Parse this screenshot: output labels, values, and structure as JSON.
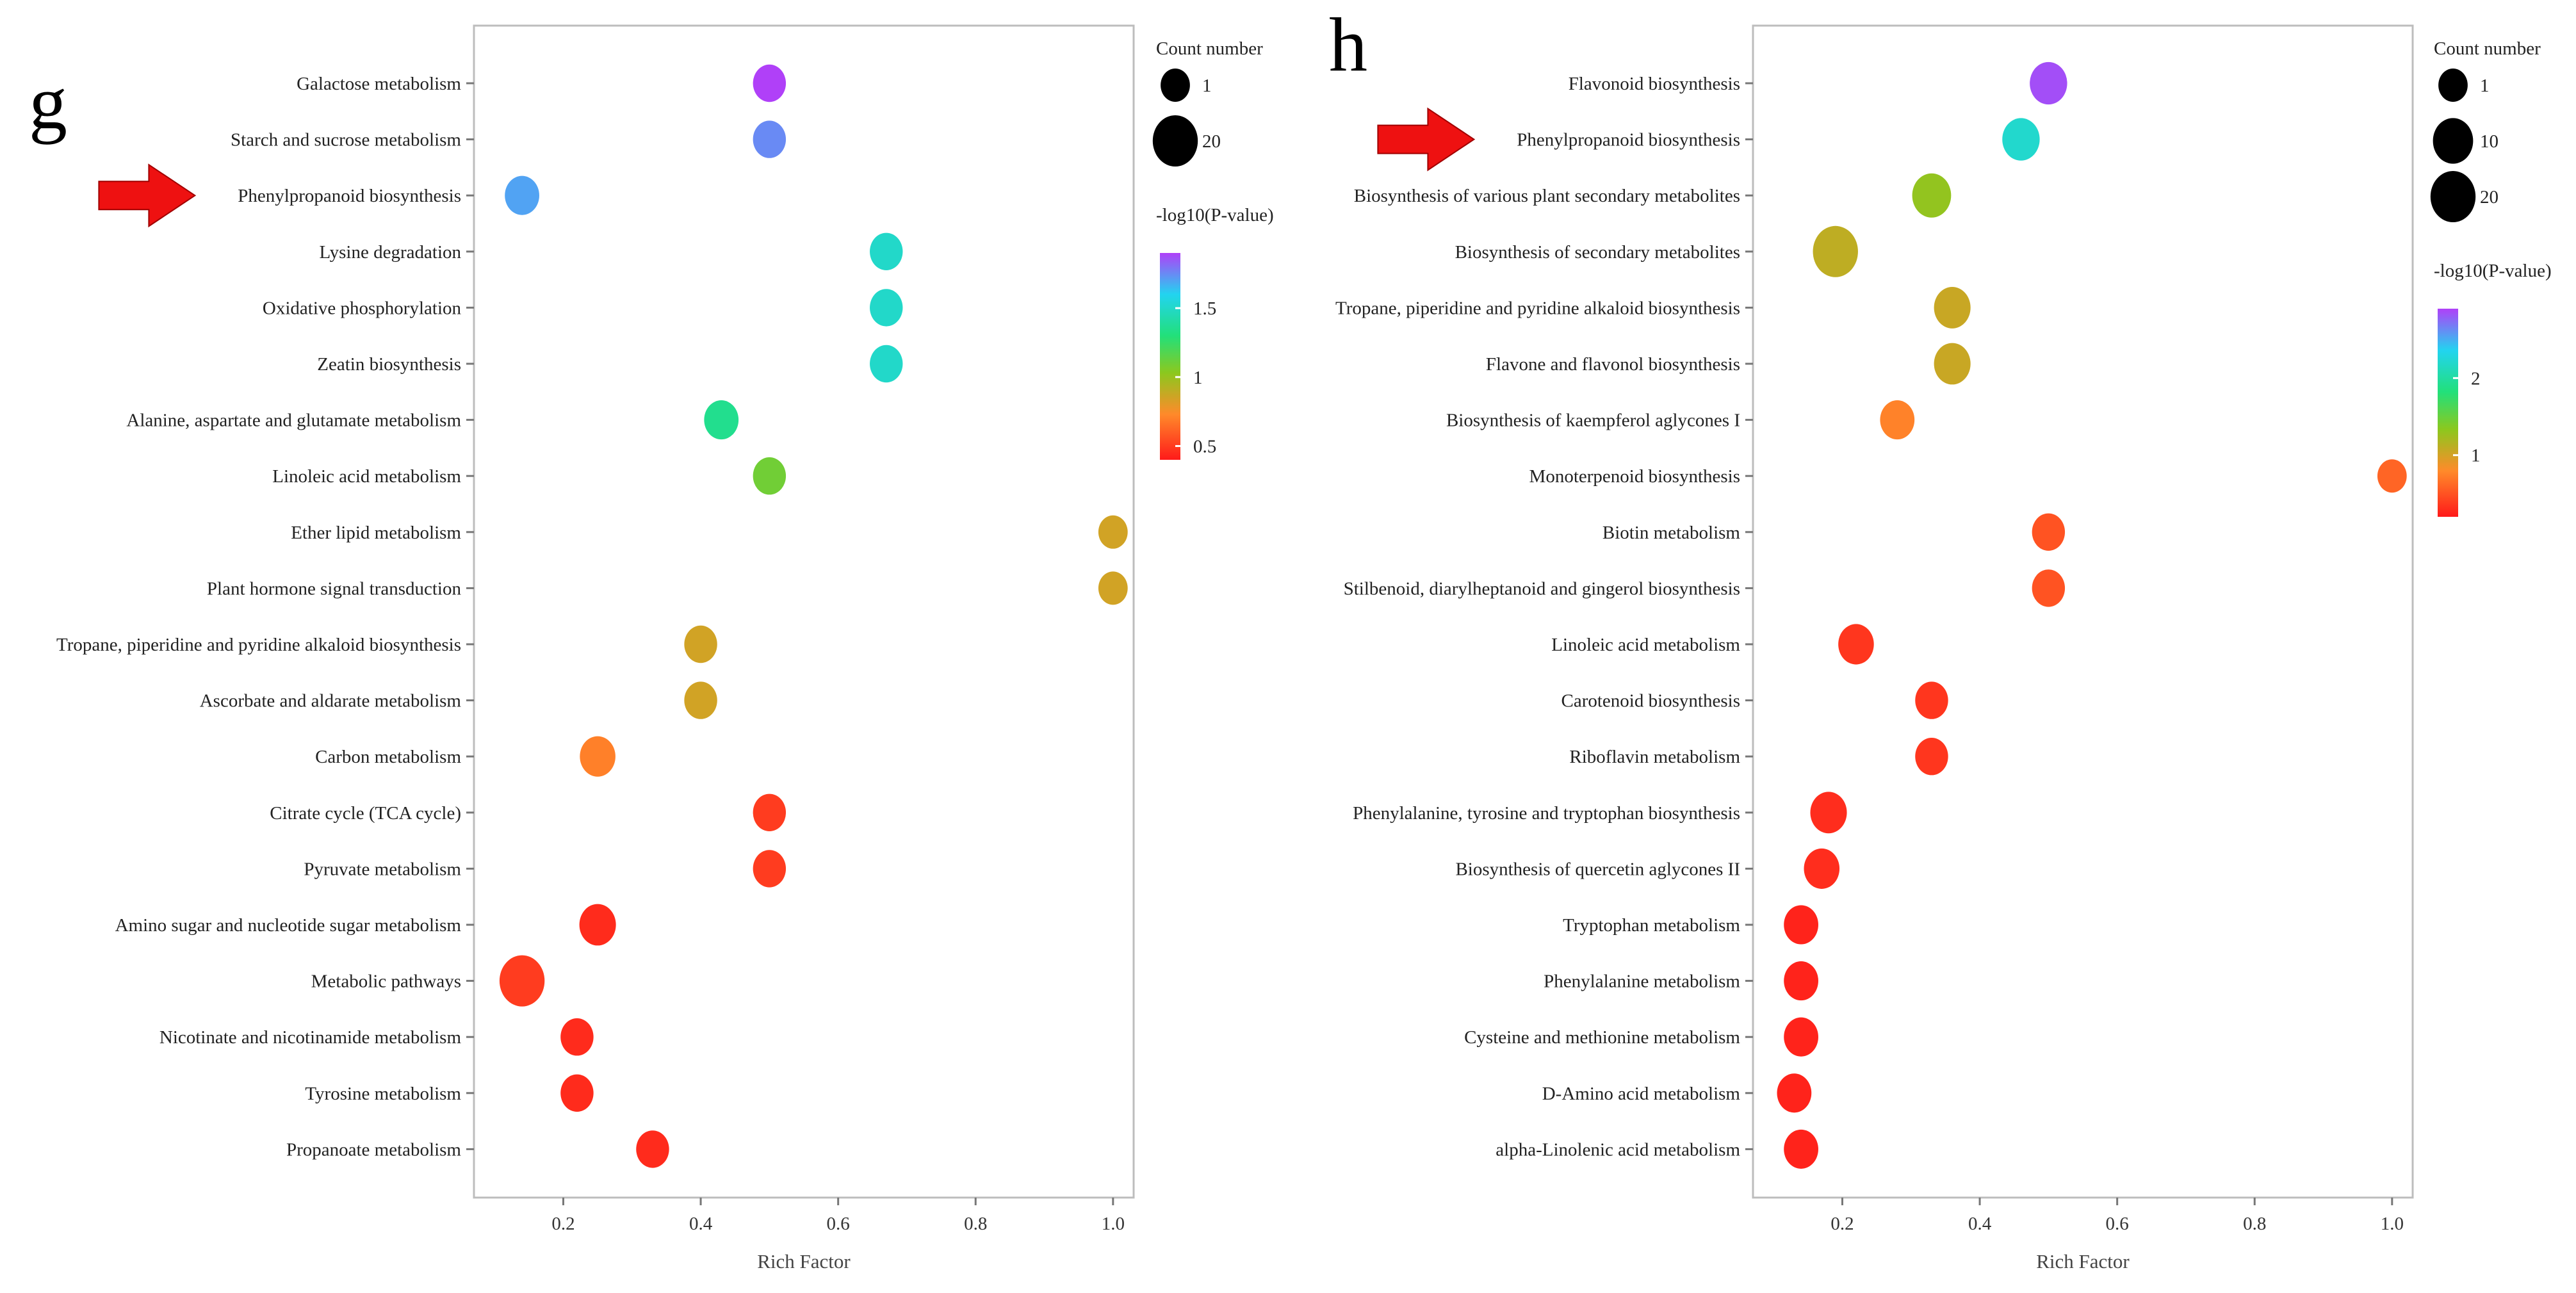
{
  "chart_data": [
    {
      "type": "scatter",
      "panel_label": "g",
      "xlabel": "Rich Factor",
      "xlim": [
        0.07,
        1.03
      ],
      "xticks": [
        "0.2",
        "0.4",
        "0.6",
        "0.8",
        "1.0"
      ],
      "size_legend_title": "Count number",
      "size_legend_values": [
        "1",
        "20"
      ],
      "color_legend_title": "-log10(P-value)",
      "colorbar_ticks": [
        "0.5",
        "1",
        "1.5"
      ],
      "colorbar_range": [
        0.4,
        1.9
      ],
      "highlighted_category": "Phenylpropanoid biosynthesis",
      "categories": [
        "Galactose metabolism",
        "Starch and sucrose metabolism",
        "Phenylpropanoid biosynthesis",
        "Lysine degradation",
        "Oxidative phosphorylation",
        "Zeatin biosynthesis",
        "Alanine, aspartate and glutamate metabolism",
        "Linoleic acid metabolism",
        "Ether lipid metabolism",
        "Plant hormone signal transduction",
        "Tropane, piperidine and pyridine alkaloid biosynthesis",
        "Ascorbate and aldarate metabolism",
        "Carbon metabolism",
        "Citrate cycle (TCA cycle)",
        "Pyruvate metabolism",
        "Amino sugar and nucleotide sugar metabolism",
        "Metabolic pathways",
        "Nicotinate and nicotinamide metabolism",
        "Tyrosine metabolism",
        "Propanoate metabolism"
      ],
      "rich_factor": [
        0.5,
        0.5,
        0.14,
        0.67,
        0.67,
        0.67,
        0.43,
        0.5,
        1.0,
        1.0,
        0.4,
        0.4,
        0.25,
        0.5,
        0.5,
        0.25,
        0.14,
        0.22,
        0.22,
        0.33
      ],
      "neg_log10_p": [
        1.95,
        1.75,
        1.7,
        1.5,
        1.5,
        1.5,
        1.35,
        1.1,
        0.85,
        0.85,
        0.85,
        0.85,
        0.7,
        0.5,
        0.5,
        0.45,
        0.5,
        0.45,
        0.45,
        0.45
      ],
      "count": [
        2,
        2,
        3,
        2,
        2,
        2,
        3,
        2,
        1,
        1,
        2,
        2,
        4,
        2,
        2,
        5,
        20,
        2,
        2,
        2
      ]
    },
    {
      "type": "scatter",
      "panel_label": "h",
      "xlabel": "Rich Factor",
      "xlim": [
        0.07,
        1.03
      ],
      "xticks": [
        "0.2",
        "0.4",
        "0.6",
        "0.8",
        "1.0"
      ],
      "size_legend_title": "Count number",
      "size_legend_values": [
        "1",
        "10",
        "20"
      ],
      "color_legend_title": "-log10(P-value)",
      "colorbar_ticks": [
        "1",
        "2"
      ],
      "colorbar_range": [
        0.2,
        2.9
      ],
      "highlighted_category": "Phenylpropanoid biosynthesis",
      "categories": [
        "Flavonoid biosynthesis",
        "Phenylpropanoid biosynthesis",
        "Biosynthesis of various plant secondary metabolites",
        "Biosynthesis of secondary metabolites",
        "Tropane, piperidine and pyridine alkaloid biosynthesis",
        "Flavone and flavonol biosynthesis",
        "Biosynthesis of kaempferol aglycones I",
        "Monoterpenoid biosynthesis",
        "Biotin metabolism",
        "Stilbenoid, diarylheptanoid and gingerol biosynthesis",
        "Linoleic acid metabolism",
        "Carotenoid biosynthesis",
        "Riboflavin metabolism",
        "Phenylalanine, tyrosine and tryptophan biosynthesis",
        "Biosynthesis of quercetin aglycones II",
        "Tryptophan metabolism",
        "Phenylalanine metabolism",
        "Cysteine and methionine metabolism",
        "D-Amino acid metabolism",
        "alpha-Linolenic acid metabolism"
      ],
      "rich_factor": [
        0.5,
        0.46,
        0.33,
        0.19,
        0.36,
        0.36,
        0.28,
        1.0,
        0.5,
        0.5,
        0.22,
        0.33,
        0.33,
        0.18,
        0.17,
        0.14,
        0.14,
        0.14,
        0.13,
        0.14
      ],
      "neg_log10_p": [
        2.85,
        2.2,
        1.3,
        1.1,
        1.05,
        1.05,
        0.75,
        0.6,
        0.5,
        0.5,
        0.35,
        0.35,
        0.35,
        0.3,
        0.3,
        0.25,
        0.25,
        0.25,
        0.25,
        0.25
      ],
      "count": [
        6,
        6,
        8,
        20,
        5,
        5,
        3,
        1,
        2,
        2,
        4,
        2,
        2,
        5,
        4,
        3,
        3,
        3,
        3,
        3
      ]
    }
  ]
}
